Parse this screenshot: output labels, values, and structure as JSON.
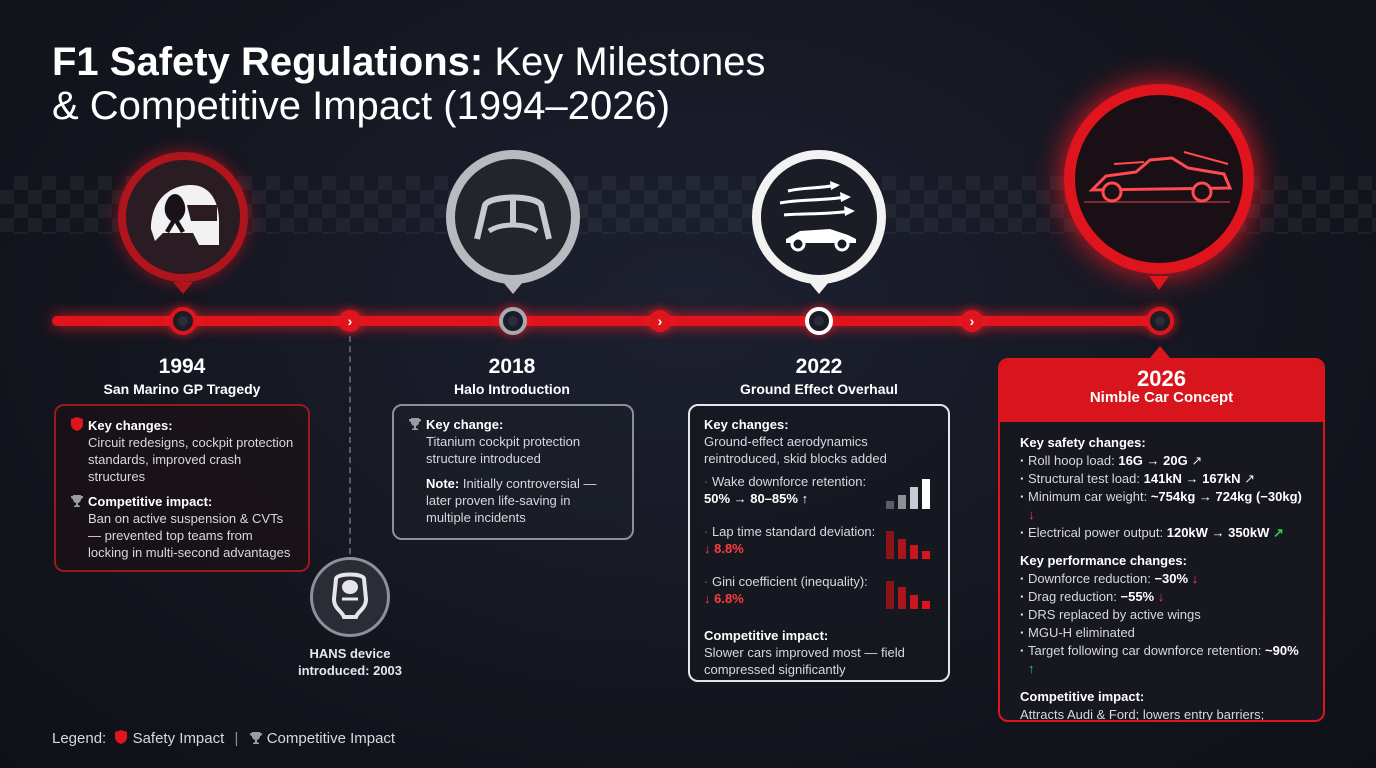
{
  "title": {
    "bold": "F1 Safety Regulations:",
    "light_line1": " Key Milestones",
    "line2": "& Competitive Impact (1994–2026)"
  },
  "milestones": {
    "m1994": {
      "year": "1994",
      "name": "San Marino GP Tragedy",
      "key_changes_label": "Key changes:",
      "key_changes_text": "Circuit redesigns, cockpit protection standards, improved crash structures",
      "competitive_label": "Competitive impact:",
      "competitive_text": "Ban on active suspension & CVTs — prevented top teams from locking in multi-second advantages"
    },
    "hans": {
      "text_line1": "HANS device",
      "text_line2": "introduced: 2003"
    },
    "m2018": {
      "year": "2018",
      "name": "Halo Introduction",
      "key_change_label": "Key change:",
      "key_change_text": "Titanium cockpit protection structure introduced",
      "note_label": "Note:",
      "note_text": " Initially controversial — later proven life-saving in multiple incidents"
    },
    "m2022": {
      "year": "2022",
      "name": "Ground Effect Overhaul",
      "key_changes_label": "Key changes:",
      "key_changes_text": "Ground-effect aerodynamics reintroduced, skid blocks added",
      "metrics": [
        {
          "label": "Wake downforce retention:",
          "value": "50% → 80–85% ↑"
        },
        {
          "label": "Lap time standard deviation:",
          "value": "↓ 8.8%"
        },
        {
          "label": "Gini coefficient (inequality):",
          "value": "↓ 6.8%"
        }
      ],
      "competitive_label": "Competitive impact:",
      "competitive_text": "Slower cars improved most — field compressed significantly"
    },
    "m2026": {
      "year": "2026",
      "name": "Nimble Car Concept",
      "safety_label": "Key safety changes:",
      "safety_items": [
        {
          "text": "Roll hoop load: ",
          "value": "16G → 20G",
          "arrow": "↗"
        },
        {
          "text": "Structural test load: ",
          "value": "141kN → 167kN",
          "arrow": "↗"
        },
        {
          "text": "Minimum car weight: ",
          "value": "~754kg → 724kg (−30kg)",
          "arrow": "↓"
        },
        {
          "text": "Electrical power output: ",
          "value": "120kW → 350kW",
          "arrow": "↗"
        }
      ],
      "performance_label": "Key performance changes:",
      "performance_items": [
        {
          "text": "Downforce reduction: ",
          "value": "−30%",
          "arrow": "↓"
        },
        {
          "text": "Drag reduction: ",
          "value": "−55%",
          "arrow": "↓"
        },
        {
          "text": "DRS replaced by active wings",
          "value": "",
          "arrow": ""
        },
        {
          "text": "MGU-H eliminated",
          "value": "",
          "arrow": ""
        },
        {
          "text": "Target following car downforce retention: ",
          "value": "~90%",
          "arrow": "↑"
        }
      ],
      "competitive_label": "Competitive impact:",
      "competitive_text": "Attracts Audi & Ford; lowers entry barriers; promotes grid parity"
    }
  },
  "legend": {
    "prefix": "Legend:",
    "safety": "Safety Impact",
    "separator": "|",
    "competitive": "Competitive Impact"
  },
  "colors": {
    "accent_red": "#e0141c",
    "silver": "#b8bac0",
    "up_green": "#2ecc4a",
    "down_red": "#ff3b3b"
  }
}
